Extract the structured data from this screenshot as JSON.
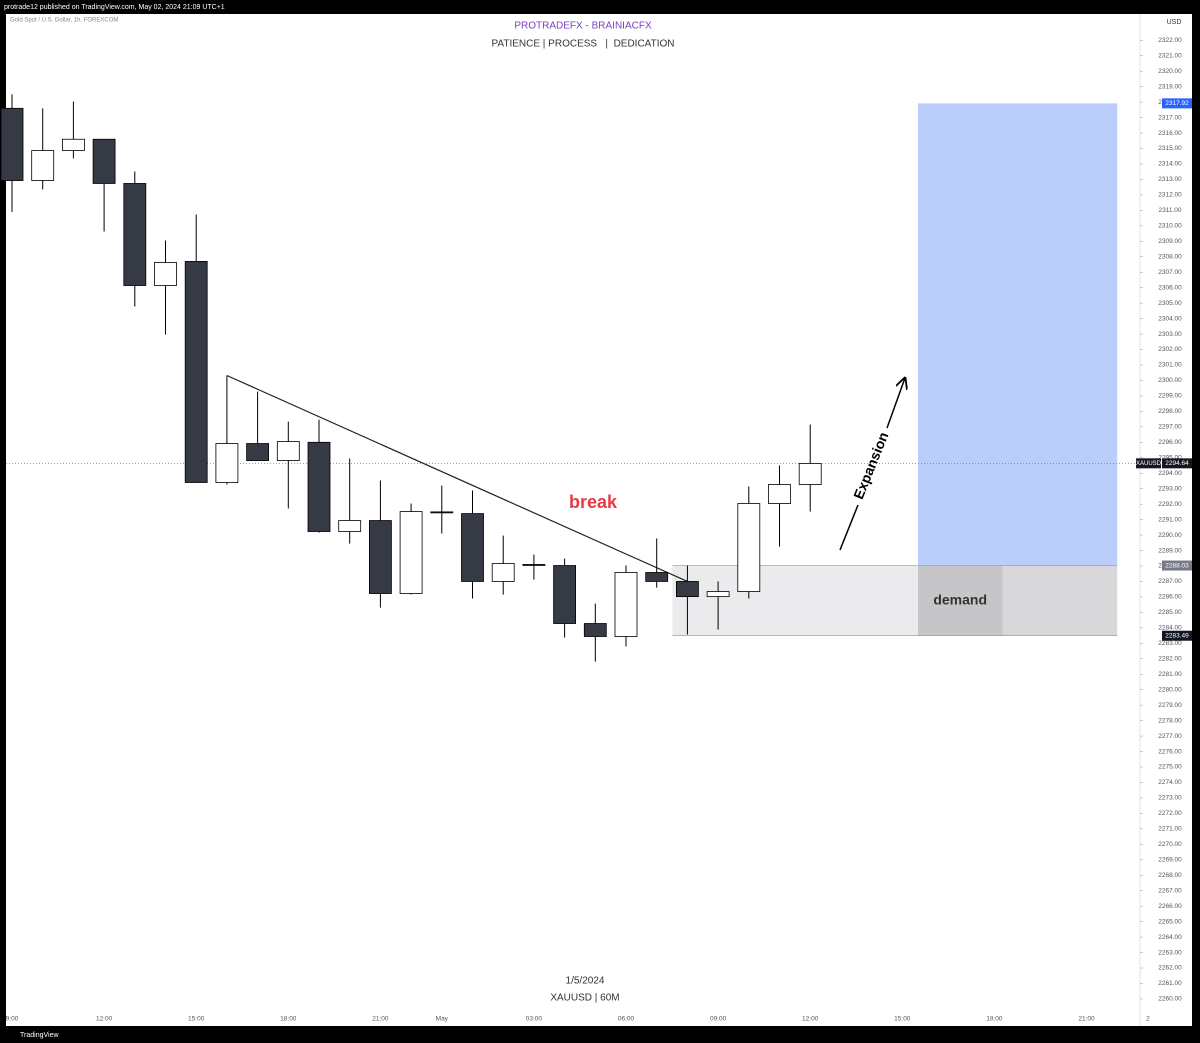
{
  "header": "protrade12 published on TradingView.com, May 02, 2024 21:09 UTC+1",
  "footer": "TradingView",
  "chart_data": {
    "type": "candlestick",
    "title": "PROTRADEFX - BRAINIACFX",
    "subtitle": "PATIENCE | PROCESS   |  DEDICATION",
    "symbol_info": "Gold Spot / U.S. Dollar, 1h, FOREXCOM",
    "currency": "USD",
    "date_label": "1/5/2024",
    "ticker_label": "XAUUSD | 60M",
    "annotations": {
      "break": "break",
      "expansion": "Expansion",
      "demand": "demand"
    },
    "up_color": "#ffffff",
    "down_color": "#363a45",
    "border_color": "#000000",
    "categories": [
      "9:00",
      null,
      null,
      "12:00",
      null,
      null,
      "15:00",
      null,
      null,
      "18:00",
      null,
      null,
      "21:00",
      null,
      "May",
      null,
      null,
      "03:00",
      null,
      null,
      "06:00",
      null,
      null,
      "09:00",
      null,
      null,
      "12:00",
      null,
      null,
      "15:00",
      null,
      null,
      "18:00",
      null,
      null,
      "21:00",
      null,
      "2"
    ],
    "open": [
      2317.6,
      2312.93,
      2314.87,
      2315.6,
      2312.74,
      2306.14,
      2307.7,
      2293.4,
      2295.92,
      2294.82,
      2296.0,
      2290.23,
      2290.94,
      2286.22,
      2291.5,
      2291.39,
      2287.0,
      2288.1,
      2288.03,
      2284.28,
      2283.44,
      2287.58,
      2287.0,
      2286.02,
      2286.35,
      2292.04,
      2293.27,
      null,
      null,
      null,
      null,
      null,
      null,
      null,
      null,
      null,
      null,
      null
    ],
    "high": [
      2318.5,
      2317.6,
      2318.04,
      2315.6,
      2313.51,
      2309.05,
      2310.73,
      2300.32,
      2299.28,
      2297.34,
      2297.47,
      2294.95,
      2293.53,
      2292.04,
      2293.2,
      2292.88,
      2289.97,
      2288.74,
      2288.48,
      2285.57,
      2288.03,
      2289.78,
      2288.03,
      2287.0,
      2293.14,
      2294.5,
      2297.15,
      null,
      null,
      null,
      null,
      null,
      null,
      null,
      null,
      null,
      null,
      null
    ],
    "low": [
      2310.9,
      2312.35,
      2314.36,
      2309.63,
      2304.78,
      2302.97,
      2293.4,
      2293.27,
      2294.82,
      2291.72,
      2290.16,
      2289.45,
      2285.31,
      2286.15,
      2290.1,
      2285.9,
      2286.15,
      2287.12,
      2283.37,
      2281.82,
      2282.79,
      2286.6,
      2283.57,
      2283.89,
      2285.9,
      2289.26,
      2291.52,
      null,
      null,
      null,
      null,
      null,
      null,
      null,
      null,
      null,
      null,
      null
    ],
    "close": [
      2312.93,
      2314.87,
      2315.6,
      2312.74,
      2306.14,
      2307.63,
      2293.4,
      2295.92,
      2294.82,
      2296.05,
      2290.23,
      2290.94,
      2286.22,
      2291.52,
      2291.45,
      2287.0,
      2288.16,
      2288.09,
      2284.28,
      2283.44,
      2287.58,
      2287.0,
      2286.02,
      2286.35,
      2292.04,
      2293.27,
      2294.63,
      null,
      null,
      null,
      null,
      null,
      null,
      null,
      null,
      null,
      null,
      null
    ],
    "last_price": 2294.64,
    "last_price_tag": "XAUUSD",
    "position": {
      "target": 2317.92,
      "entry": 2288.03,
      "stop": 2283.49
    },
    "trendline": {
      "start": 2300.32,
      "end": 2287.0
    },
    "ylim": [
      2258.25,
      2323.7
    ],
    "yticks": [
      {
        "value": 2260,
        "label": "2260.00"
      },
      {
        "value": 2261,
        "label": "2261.00"
      },
      {
        "value": 2262,
        "label": "2262.00"
      },
      {
        "value": 2263,
        "label": "2263.00"
      },
      {
        "value": 2264,
        "label": "2264.00"
      },
      {
        "value": 2265,
        "label": "2265.00"
      },
      {
        "value": 2266,
        "label": "2266.00"
      },
      {
        "value": 2267,
        "label": "2267.00"
      },
      {
        "value": 2268,
        "label": "2268.00"
      },
      {
        "value": 2269,
        "label": "2269.00"
      },
      {
        "value": 2270,
        "label": "2270.00"
      },
      {
        "value": 2271,
        "label": "2271.00"
      },
      {
        "value": 2272,
        "label": "2272.00"
      },
      {
        "value": 2273,
        "label": "2273.00"
      },
      {
        "value": 2274,
        "label": "2274.00"
      },
      {
        "value": 2275,
        "label": "2275.00"
      },
      {
        "value": 2276,
        "label": "2276.00"
      },
      {
        "value": 2277,
        "label": "2277.00"
      },
      {
        "value": 2278,
        "label": "2278.00"
      },
      {
        "value": 2279,
        "label": "2279.00"
      },
      {
        "value": 2280,
        "label": "2280.00"
      },
      {
        "value": 2281,
        "label": "2281.00"
      },
      {
        "value": 2282,
        "label": "2282.00"
      },
      {
        "value": 2283,
        "label": "2283.00"
      },
      {
        "value": 2284,
        "label": "2284.00"
      },
      {
        "value": 2285,
        "label": "2285.00"
      },
      {
        "value": 2286,
        "label": "2286.00"
      },
      {
        "value": 2287,
        "label": "2287.00"
      },
      {
        "value": 2288,
        "label": "2288.00"
      },
      {
        "value": 2289,
        "label": "2289.00"
      },
      {
        "value": 2290,
        "label": "2290.00"
      },
      {
        "value": 2291,
        "label": "2291.00"
      },
      {
        "value": 2292,
        "label": "2292.00"
      },
      {
        "value": 2293,
        "label": "2293.00"
      },
      {
        "value": 2294,
        "label": "2294.00"
      },
      {
        "value": 2295,
        "label": "2295.00"
      },
      {
        "value": 2296,
        "label": "2296.00"
      },
      {
        "value": 2297,
        "label": "2297.00"
      },
      {
        "value": 2298,
        "label": "2298.00"
      },
      {
        "value": 2299,
        "label": "2299.00"
      },
      {
        "value": 2300,
        "label": "2300.00"
      },
      {
        "value": 2301,
        "label": "2301.00"
      },
      {
        "value": 2302,
        "label": "2302.00"
      },
      {
        "value": 2303,
        "label": "2303.00"
      },
      {
        "value": 2304,
        "label": "2304.00"
      },
      {
        "value": 2305,
        "label": "2305.00"
      },
      {
        "value": 2306,
        "label": "2306.00"
      },
      {
        "value": 2307,
        "label": "2307.00"
      },
      {
        "value": 2308,
        "label": "2308.00"
      },
      {
        "value": 2309,
        "label": "2309.00"
      },
      {
        "value": 2310,
        "label": "2310.00"
      },
      {
        "value": 2311,
        "label": "2311.00"
      },
      {
        "value": 2312,
        "label": "2312.00"
      },
      {
        "value": 2313,
        "label": "2313.00"
      },
      {
        "value": 2314,
        "label": "2314.00"
      },
      {
        "value": 2315,
        "label": "2315.00"
      },
      {
        "value": 2316,
        "label": "2316.00"
      },
      {
        "value": 2317,
        "label": "2317.00"
      },
      {
        "value": 2318,
        "label": "2318.00"
      },
      {
        "value": 2319,
        "label": "2319.00"
      },
      {
        "value": 2320,
        "label": "2320.00"
      },
      {
        "value": 2321,
        "label": "2321.00"
      },
      {
        "value": 2322,
        "label": "2322.00"
      }
    ]
  }
}
